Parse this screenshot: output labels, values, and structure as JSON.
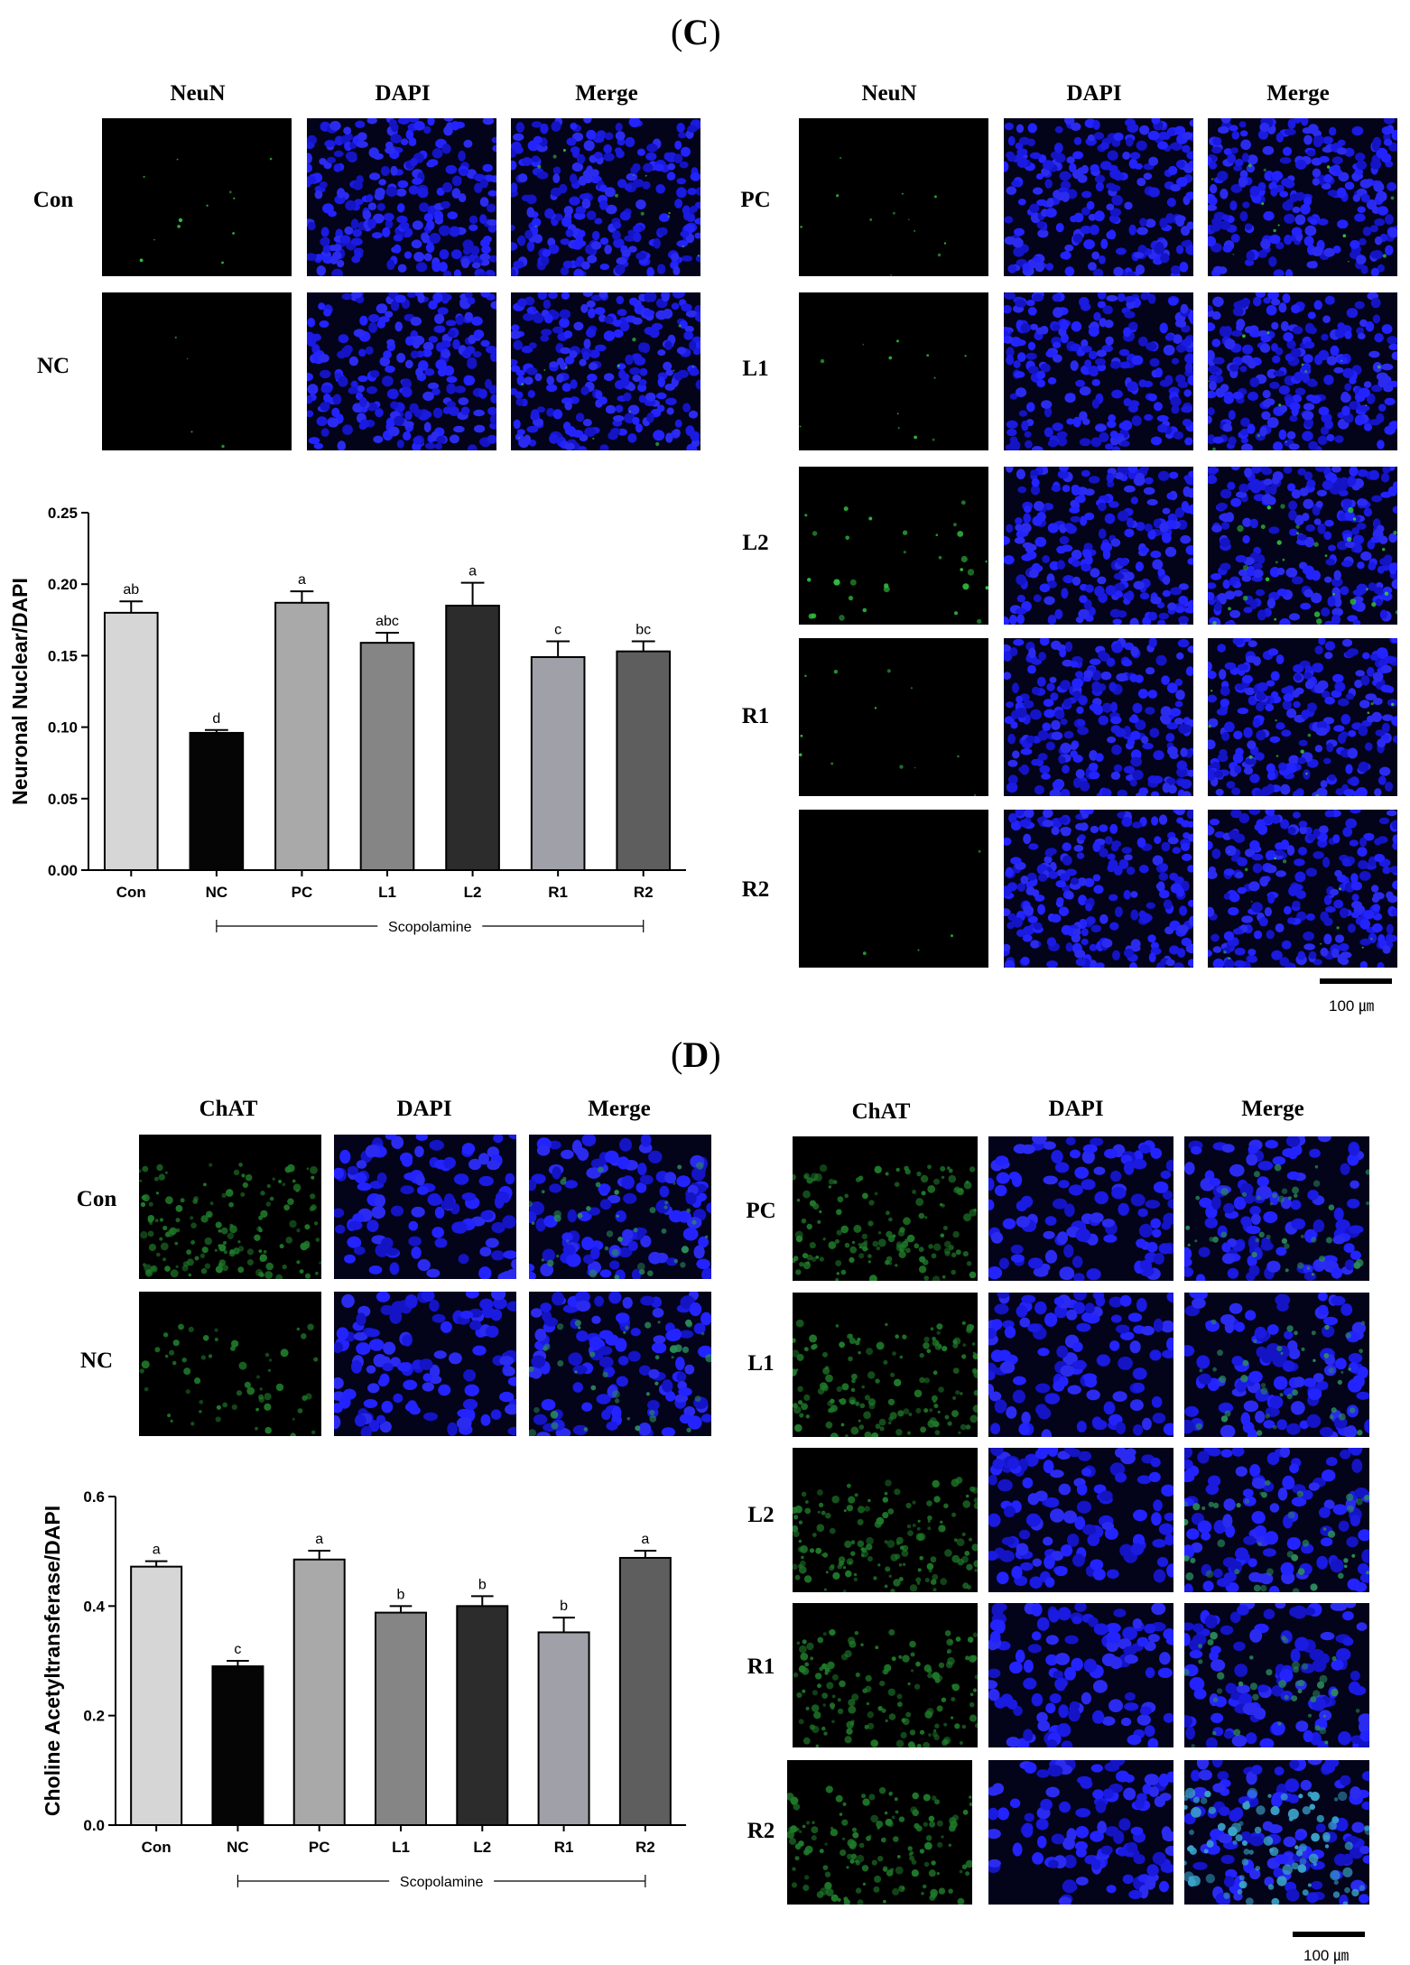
{
  "panels": [
    {
      "letter": "C",
      "left_block": {
        "columns": [
          "NeuN",
          "DAPI",
          "Merge"
        ],
        "rows": [
          "Con",
          "NC"
        ]
      },
      "right_block": {
        "columns": [
          "NeuN",
          "DAPI",
          "Merge"
        ],
        "rows": [
          "PC",
          "L1",
          "L2",
          "R1",
          "R2"
        ]
      },
      "scale_bar": "100 ㎛"
    },
    {
      "letter": "D",
      "left_block": {
        "columns": [
          "ChAT",
          "DAPI",
          "Merge"
        ],
        "rows": [
          "Con",
          "NC"
        ]
      },
      "right_block": {
        "columns": [
          "ChAT",
          "DAPI",
          "Merge"
        ],
        "rows": [
          "PC",
          "L1",
          "L2",
          "R1",
          "R2"
        ]
      },
      "scale_bar": "100 ㎛"
    }
  ],
  "chart_data": [
    {
      "type": "bar",
      "ylabel": "Neuronal Nuclear/DAPI",
      "categories": [
        "Con",
        "NC",
        "PC",
        "L1",
        "L2",
        "R1",
        "R2"
      ],
      "values": [
        0.18,
        0.096,
        0.187,
        0.159,
        0.185,
        0.149,
        0.153
      ],
      "errors": [
        0.008,
        0.002,
        0.008,
        0.007,
        0.016,
        0.011,
        0.007
      ],
      "letters": [
        "ab",
        "d",
        "a",
        "abc",
        "a",
        "c",
        "bc"
      ],
      "colors": [
        "#d6d6d6",
        "#050505",
        "#a9a9a9",
        "#858585",
        "#2c2c2c",
        "#a0a0a8",
        "#5e5e5e"
      ],
      "ylim": [
        0,
        0.25
      ],
      "yticks": [
        "0.00",
        "0.05",
        "0.10",
        "0.15",
        "0.20",
        "0.25"
      ],
      "group_label": "Scopolamine"
    },
    {
      "type": "bar",
      "ylabel": "Choline Acetyltransferase/DAPI",
      "categories": [
        "Con",
        "NC",
        "PC",
        "L1",
        "L2",
        "R1",
        "R2"
      ],
      "values": [
        0.472,
        0.29,
        0.485,
        0.388,
        0.4,
        0.352,
        0.488
      ],
      "errors": [
        0.01,
        0.01,
        0.016,
        0.012,
        0.018,
        0.027,
        0.013
      ],
      "letters": [
        "a",
        "c",
        "a",
        "b",
        "b",
        "b",
        "a"
      ],
      "colors": [
        "#d6d6d6",
        "#050505",
        "#a9a9a9",
        "#858585",
        "#2c2c2c",
        "#a0a0a8",
        "#5e5e5e"
      ],
      "ylim": [
        0,
        0.6
      ],
      "yticks": [
        "0.0",
        "0.2",
        "0.4",
        "0.6"
      ],
      "group_label": "Scopolamine"
    }
  ]
}
